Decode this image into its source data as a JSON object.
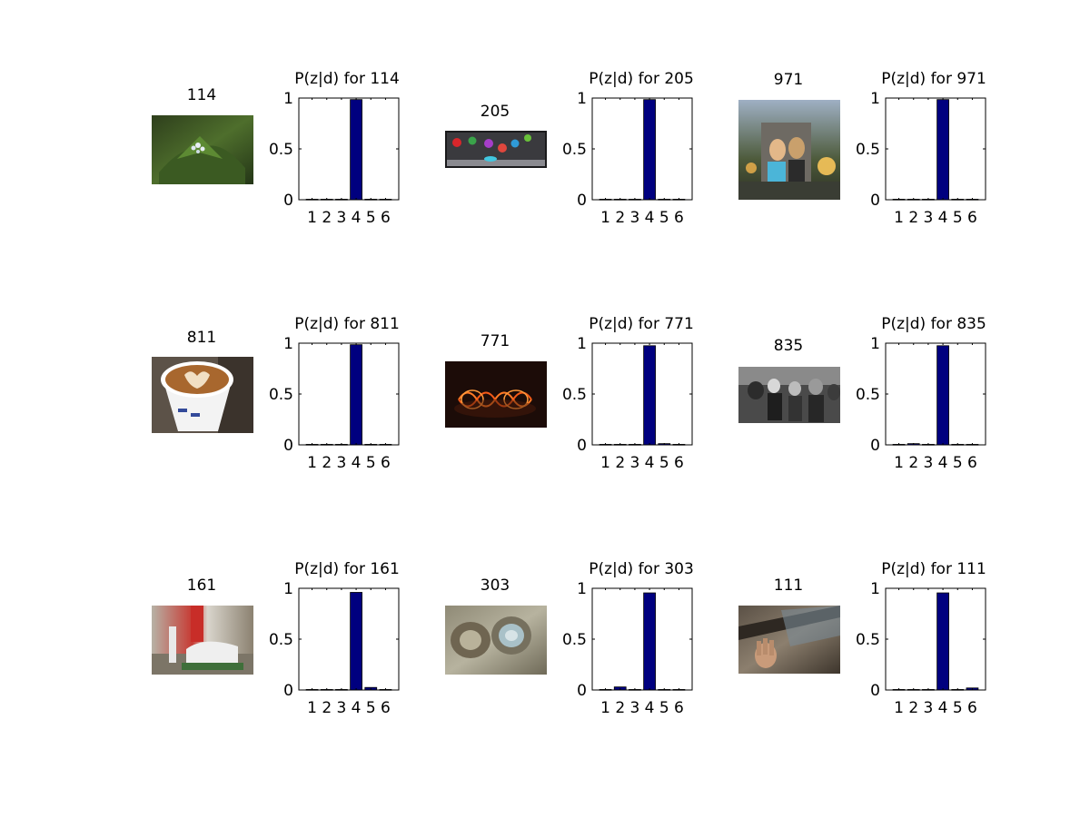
{
  "colors": {
    "bar": "#00007f",
    "axis": "#000000",
    "background": "#ffffff"
  },
  "chart_data": [
    {
      "type": "bar",
      "image_label": "114",
      "image_icon": "plant-flower-photo",
      "title": "P(z|d) for 114",
      "categories": [
        "1",
        "2",
        "3",
        "4",
        "5",
        "6"
      ],
      "values": [
        0.005,
        0.005,
        0.005,
        0.985,
        0.005,
        0.005
      ],
      "ylim": [
        0,
        1
      ],
      "yticks": [
        "0",
        "0.5",
        "1"
      ],
      "xlabel": "",
      "ylabel": ""
    },
    {
      "type": "bar",
      "image_label": "205",
      "image_icon": "colored-balls-photo",
      "title": "P(z|d) for 205",
      "categories": [
        "1",
        "2",
        "3",
        "4",
        "5",
        "6"
      ],
      "values": [
        0.005,
        0.005,
        0.005,
        0.985,
        0.005,
        0.005
      ],
      "ylim": [
        0,
        1
      ],
      "yticks": [
        "0",
        "0.5",
        "1"
      ],
      "xlabel": "",
      "ylabel": ""
    },
    {
      "type": "bar",
      "image_label": "971",
      "image_icon": "two-people-sunset-photo",
      "title": "P(z|d) for 971",
      "categories": [
        "1",
        "2",
        "3",
        "4",
        "5",
        "6"
      ],
      "values": [
        0.005,
        0.005,
        0.005,
        0.985,
        0.005,
        0.005
      ],
      "ylim": [
        0,
        1
      ],
      "yticks": [
        "0",
        "0.5",
        "1"
      ],
      "xlabel": "",
      "ylabel": ""
    },
    {
      "type": "bar",
      "image_label": "811",
      "image_icon": "latte-cup-photo",
      "title": "P(z|d) for 811",
      "categories": [
        "1",
        "2",
        "3",
        "4",
        "5",
        "6"
      ],
      "values": [
        0.005,
        0.005,
        0.005,
        0.985,
        0.005,
        0.005
      ],
      "ylim": [
        0,
        1
      ],
      "yticks": [
        "0",
        "0.5",
        "1"
      ],
      "xlabel": "",
      "ylabel": ""
    },
    {
      "type": "bar",
      "image_label": "771",
      "image_icon": "orange-light-trails-photo",
      "title": "P(z|d) for 771",
      "categories": [
        "1",
        "2",
        "3",
        "4",
        "5",
        "6"
      ],
      "values": [
        0.005,
        0.005,
        0.005,
        0.975,
        0.012,
        0.005
      ],
      "ylim": [
        0,
        1
      ],
      "yticks": [
        "0",
        "0.5",
        "1"
      ],
      "xlabel": "",
      "ylabel": ""
    },
    {
      "type": "bar",
      "image_label": "835",
      "image_icon": "street-crowd-bw-photo",
      "title": "P(z|d) for 835",
      "categories": [
        "1",
        "2",
        "3",
        "4",
        "5",
        "6"
      ],
      "values": [
        0.005,
        0.012,
        0.005,
        0.975,
        0.005,
        0.005
      ],
      "ylim": [
        0,
        1
      ],
      "yticks": [
        "0",
        "0.5",
        "1"
      ],
      "xlabel": "",
      "ylabel": ""
    },
    {
      "type": "bar",
      "image_label": "161",
      "image_icon": "street-sculpture-photo",
      "title": "P(z|d) for 161",
      "categories": [
        "1",
        "2",
        "3",
        "4",
        "5",
        "6"
      ],
      "values": [
        0.005,
        0.005,
        0.005,
        0.96,
        0.025,
        0.005
      ],
      "ylim": [
        0,
        1
      ],
      "yticks": [
        "0",
        "0.5",
        "1"
      ],
      "xlabel": "",
      "ylabel": ""
    },
    {
      "type": "bar",
      "image_label": "303",
      "image_icon": "stone-texture-photo",
      "title": "P(z|d) for 303",
      "categories": [
        "1",
        "2",
        "3",
        "4",
        "5",
        "6"
      ],
      "values": [
        0.005,
        0.03,
        0.005,
        0.955,
        0.005,
        0.005
      ],
      "ylim": [
        0,
        1
      ],
      "yticks": [
        "0",
        "0.5",
        "1"
      ],
      "xlabel": "",
      "ylabel": ""
    },
    {
      "type": "bar",
      "image_label": "111",
      "image_icon": "hand-window-photo",
      "title": "P(z|d) for 111",
      "categories": [
        "1",
        "2",
        "3",
        "4",
        "5",
        "6"
      ],
      "values": [
        0.005,
        0.005,
        0.005,
        0.955,
        0.005,
        0.02
      ],
      "ylim": [
        0,
        1
      ],
      "yticks": [
        "0",
        "0.5",
        "1"
      ],
      "xlabel": "",
      "ylabel": ""
    }
  ]
}
